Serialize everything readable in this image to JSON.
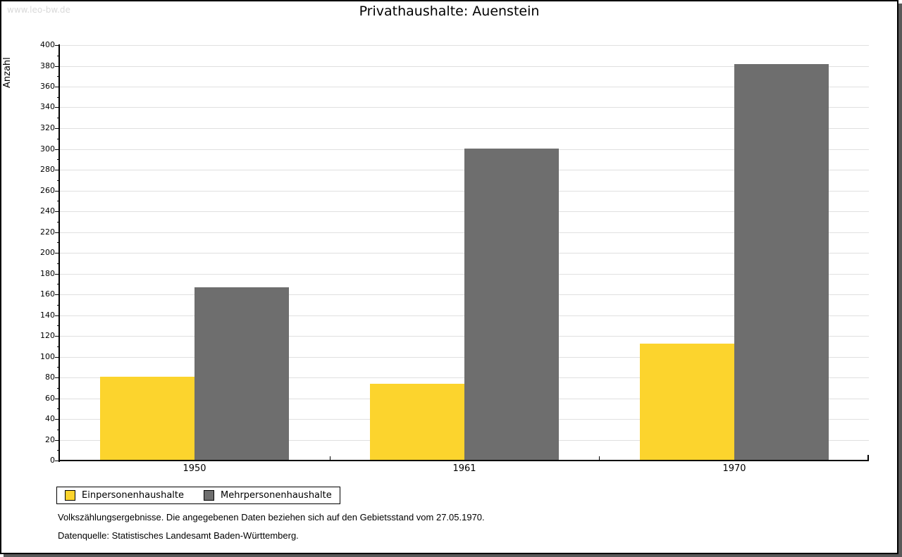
{
  "watermark": "www.leo-bw.de",
  "footer": {
    "line1": "Volkszählungsergebnisse. Die angegebenen Daten beziehen sich auf den Gebietsstand vom 27.05.1970.",
    "line2": "Datenquelle: Statistisches Landesamt Baden-Württemberg."
  },
  "colors": {
    "grid": "#e0e0e0",
    "axis": "#000000",
    "shadow": "#595959",
    "watermark": "#d9d9d9",
    "series_yellow": "#fcd42d",
    "series_gray": "#6e6e6e"
  },
  "chart_data": {
    "type": "bar",
    "title": "Privathaushalte: Auenstein",
    "categories": [
      "1950",
      "1961",
      "1970"
    ],
    "series": [
      {
        "name": "Einpersonenhaushalte",
        "color": "#fcd42d",
        "values": [
          80,
          73,
          112
        ]
      },
      {
        "name": "Mehrpersonenhaushalte",
        "color": "#6e6e6e",
        "values": [
          166,
          300,
          381
        ]
      }
    ],
    "xlabel": "",
    "ylabel": "Anzahl",
    "ylim": [
      0,
      400
    ],
    "ytick_step": 20,
    "yminor_step": 10,
    "grid": true,
    "legend_position": "bottom-left"
  }
}
